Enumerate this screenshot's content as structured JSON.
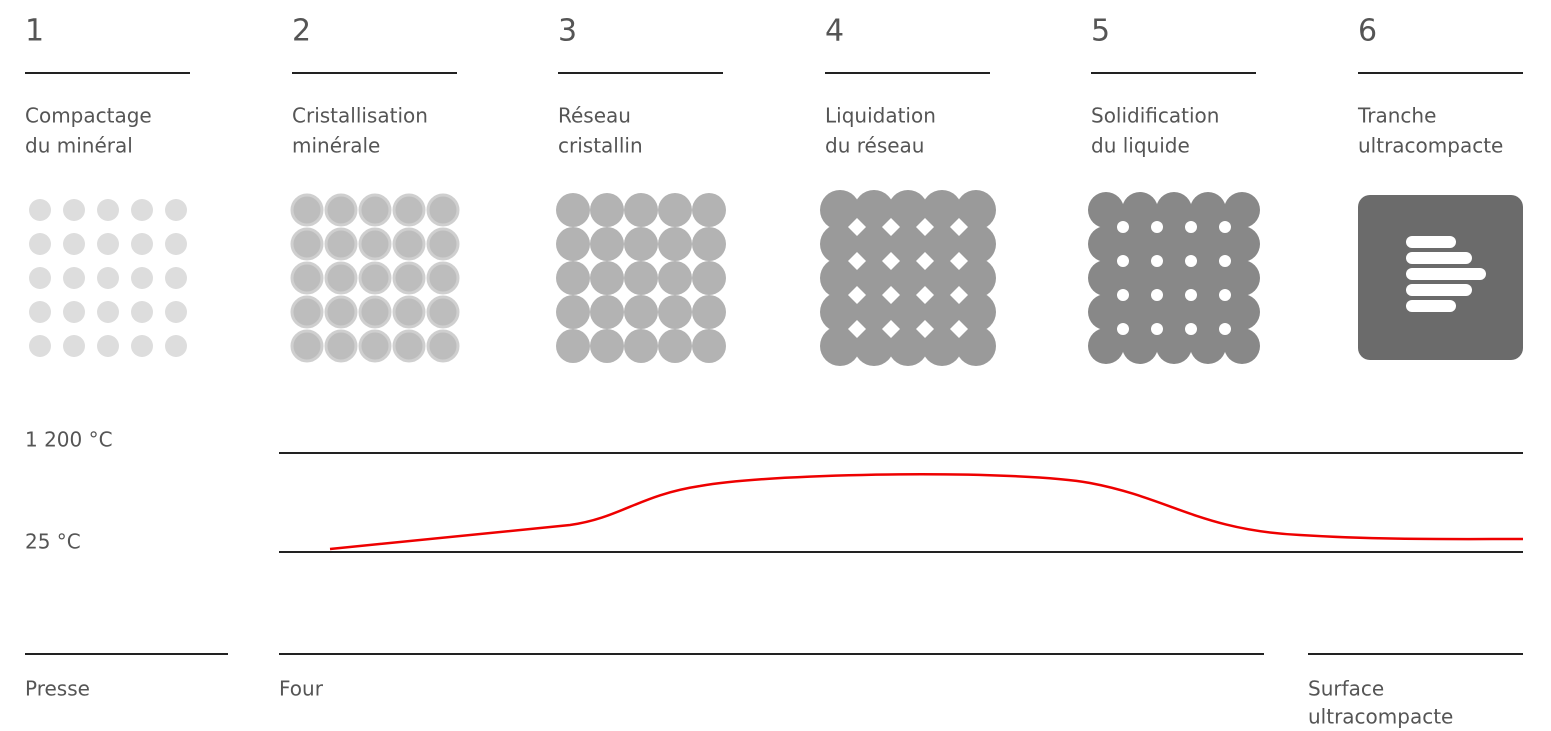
{
  "steps": [
    {
      "number": "1",
      "label": [
        "Compactage",
        "du minéral"
      ]
    },
    {
      "number": "2",
      "label": [
        "Cristallisation",
        "minérale"
      ]
    },
    {
      "number": "3",
      "label": [
        "Réseau",
        "cristallin"
      ]
    },
    {
      "number": "4",
      "label": [
        "Liquidation",
        "du réseau"
      ]
    },
    {
      "number": "5",
      "label": [
        "Solidification",
        "du liquide"
      ]
    },
    {
      "number": "6",
      "label": [
        "Tranche",
        "ultracompacte"
      ]
    }
  ],
  "temperature": {
    "high": "1 200 °C",
    "low": "25 °C"
  },
  "stages": [
    {
      "label": [
        "Presse"
      ]
    },
    {
      "label": [
        "Four"
      ]
    },
    {
      "label": [
        "Surface",
        "ultracompacte"
      ]
    }
  ]
}
